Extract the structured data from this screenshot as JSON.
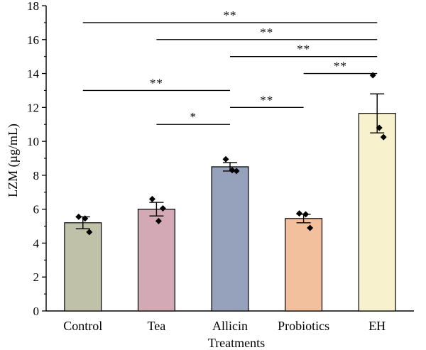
{
  "chart_data": {
    "type": "bar",
    "xlabel": "Treatments",
    "ylabel": "LZM (µg/mL)",
    "ylim": [
      0,
      18
    ],
    "yticks": [
      0,
      2,
      4,
      6,
      8,
      10,
      12,
      14,
      16,
      18
    ],
    "categories": [
      "Control",
      "Tea",
      "Allicin",
      "Probiotics",
      "EH"
    ],
    "values": [
      5.2,
      6.0,
      8.5,
      5.45,
      11.65
    ],
    "errors": [
      0.35,
      0.4,
      0.25,
      0.25,
      1.15
    ],
    "bar_colors": [
      "#bfc2a9",
      "#d3a9b6",
      "#96a2bb",
      "#f3c09e",
      "#f7f2cd"
    ],
    "points": [
      [
        5.55,
        5.45,
        4.65
      ],
      [
        6.6,
        5.3,
        6.05
      ],
      [
        8.95,
        8.3,
        8.25
      ],
      [
        5.75,
        5.7,
        4.9
      ],
      [
        13.9,
        10.8,
        10.25
      ]
    ],
    "significance": [
      {
        "from": 0,
        "to": 4,
        "y": 17.0,
        "label": "**"
      },
      {
        "from": 1,
        "to": 4,
        "y": 16.0,
        "label": "**"
      },
      {
        "from": 2,
        "to": 4,
        "y": 15.0,
        "label": "**"
      },
      {
        "from": 3,
        "to": 4,
        "y": 14.0,
        "label": "**"
      },
      {
        "from": 0,
        "to": 2,
        "y": 13.0,
        "label": "**"
      },
      {
        "from": 2,
        "to": 3,
        "y": 12.0,
        "label": "**"
      },
      {
        "from": 1,
        "to": 2,
        "y": 11.0,
        "label": "*"
      }
    ],
    "grid": false,
    "legend": "none"
  }
}
